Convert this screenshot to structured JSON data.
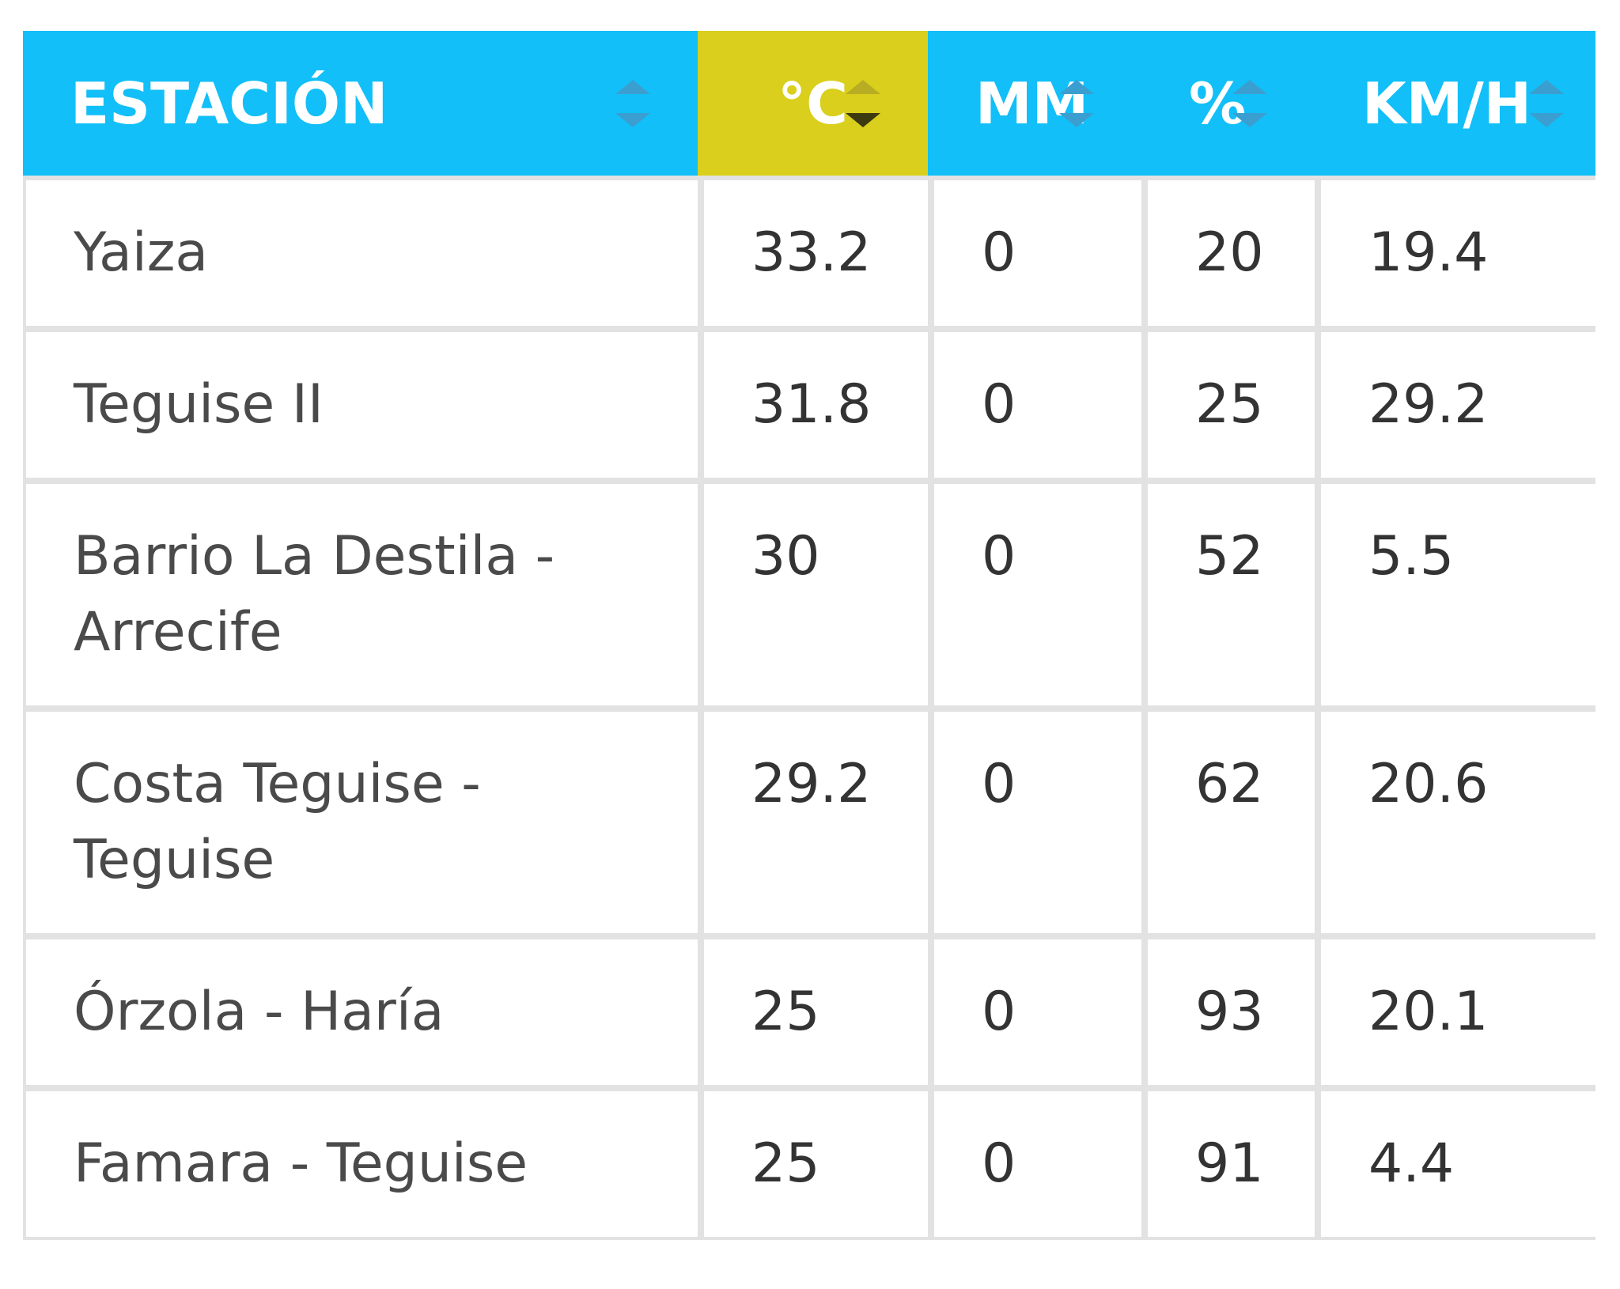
{
  "table": {
    "header": [
      "ESTACIÓN",
      "°C",
      "MM",
      "%",
      "KM/H"
    ],
    "rows": [
      [
        "Yaiza",
        33.2,
        0,
        20,
        19.4
      ],
      [
        "Teguise II",
        31.8,
        0,
        25,
        29.2
      ],
      [
        "Barrio La Destila - Arrecife",
        30,
        0,
        52,
        5.5
      ],
      [
        "Costa Teguise - Teguise",
        29.2,
        0,
        62,
        20.6
      ],
      [
        "Órzola - Haría",
        25,
        0,
        93,
        20.1
      ],
      [
        "Famara - Teguise",
        25,
        0,
        91,
        4.4
      ]
    ]
  }
}
